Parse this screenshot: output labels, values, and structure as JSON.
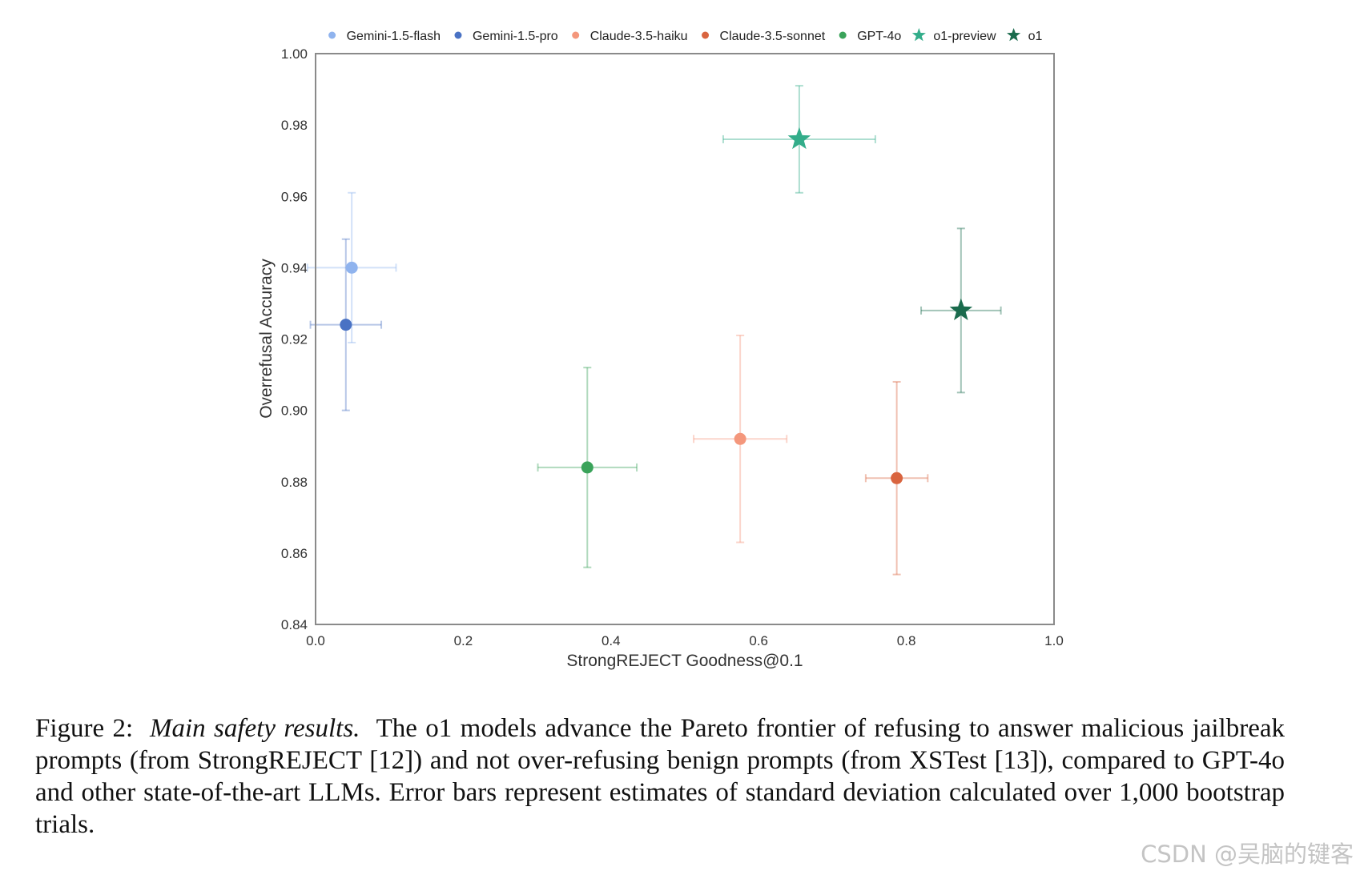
{
  "chart_data": {
    "type": "scatter",
    "xlabel": "StrongREJECT Goodness@0.1",
    "ylabel": "Overrefusal Accuracy",
    "xlim": [
      0.0,
      1.0
    ],
    "ylim": [
      0.84,
      1.0
    ],
    "x_ticks": [
      "0.0",
      "0.2",
      "0.4",
      "0.6",
      "0.8",
      "1.0"
    ],
    "y_ticks": [
      "0.84",
      "0.86",
      "0.88",
      "0.90",
      "0.92",
      "0.94",
      "0.96",
      "0.98",
      "1.00"
    ],
    "grid": false,
    "legend_position": "top",
    "error_bars": "standard deviation",
    "series": [
      {
        "name": "Gemini-1.5-flash",
        "marker": "circle",
        "color": "#8fb3ee",
        "x": 0.049,
        "y": 0.94,
        "x_err": 0.06,
        "y_err": 0.021
      },
      {
        "name": "Gemini-1.5-pro",
        "marker": "circle",
        "color": "#4a72c4",
        "x": 0.041,
        "y": 0.924,
        "x_err": 0.048,
        "y_err": 0.024
      },
      {
        "name": "Claude-3.5-haiku",
        "marker": "circle",
        "color": "#f4977c",
        "x": 0.575,
        "y": 0.892,
        "x_err": 0.063,
        "y_err": 0.029
      },
      {
        "name": "Claude-3.5-sonnet",
        "marker": "circle",
        "color": "#d9643f",
        "x": 0.787,
        "y": 0.881,
        "x_err": 0.042,
        "y_err": 0.027
      },
      {
        "name": "GPT-4o",
        "marker": "circle",
        "color": "#3aa35a",
        "x": 0.368,
        "y": 0.884,
        "x_err": 0.067,
        "y_err": 0.028
      },
      {
        "name": "o1-preview",
        "marker": "star",
        "color": "#33ad8a",
        "x": 0.655,
        "y": 0.976,
        "x_err": 0.103,
        "y_err": 0.015
      },
      {
        "name": "o1",
        "marker": "star",
        "color": "#1a6b4d",
        "x": 0.874,
        "y": 0.928,
        "x_err": 0.054,
        "y_err": 0.023
      }
    ]
  },
  "caption": {
    "figure_label": "Figure 2:",
    "title": "Main safety results.",
    "text": "The o1 models advance the Pareto frontier of refusing to answer malicious jailbreak prompts (from StrongREJECT [12]) and not over-refusing benign prompts (from XSTest [13]), compared to GPT-4o and other state-of-the-art LLMs. Error bars represent estimates of standard deviation calculated over 1,000 bootstrap trials."
  },
  "watermark": "CSDN @吴脑的键客"
}
